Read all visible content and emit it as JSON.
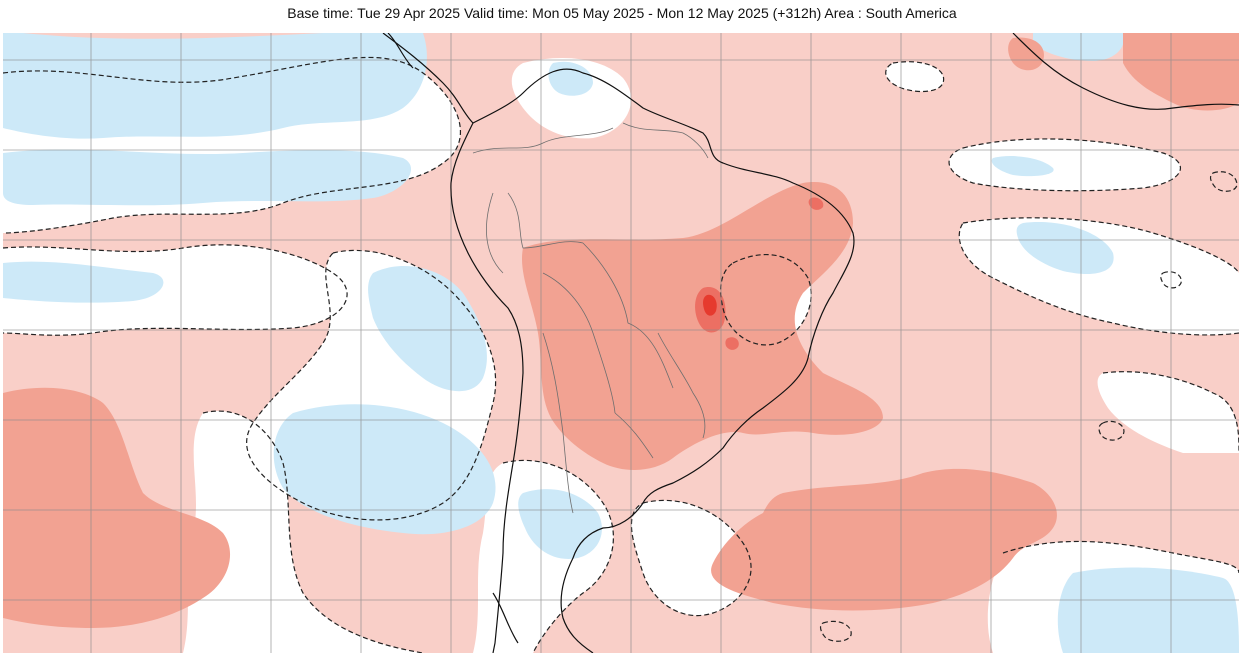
{
  "header": {
    "title": "Base time: Tue 29 Apr 2025 Valid time: Mon 05 May 2025 - Mon 12 May 2025 (+312h) Area : South America"
  },
  "map": {
    "region": "South America",
    "layers": [
      "positive-anomaly-light",
      "positive-anomaly-medium",
      "positive-anomaly-strong",
      "near-normal",
      "negative-anomaly-light",
      "contour-zero-dashed",
      "coastline",
      "country-borders",
      "lat-lon-grid"
    ]
  },
  "colors": {
    "positive_light": "#f9cfc8",
    "positive_medium": "#f2a292",
    "positive_strong": "#ec6f63",
    "positive_max": "#e63a2e",
    "near_normal": "#ffffff",
    "negative_light": "#cde9f8",
    "negative_medium": "#a9d6f1",
    "coastline": "#111111",
    "borders": "#6e6e6e",
    "grid": "#8a8a8a"
  }
}
